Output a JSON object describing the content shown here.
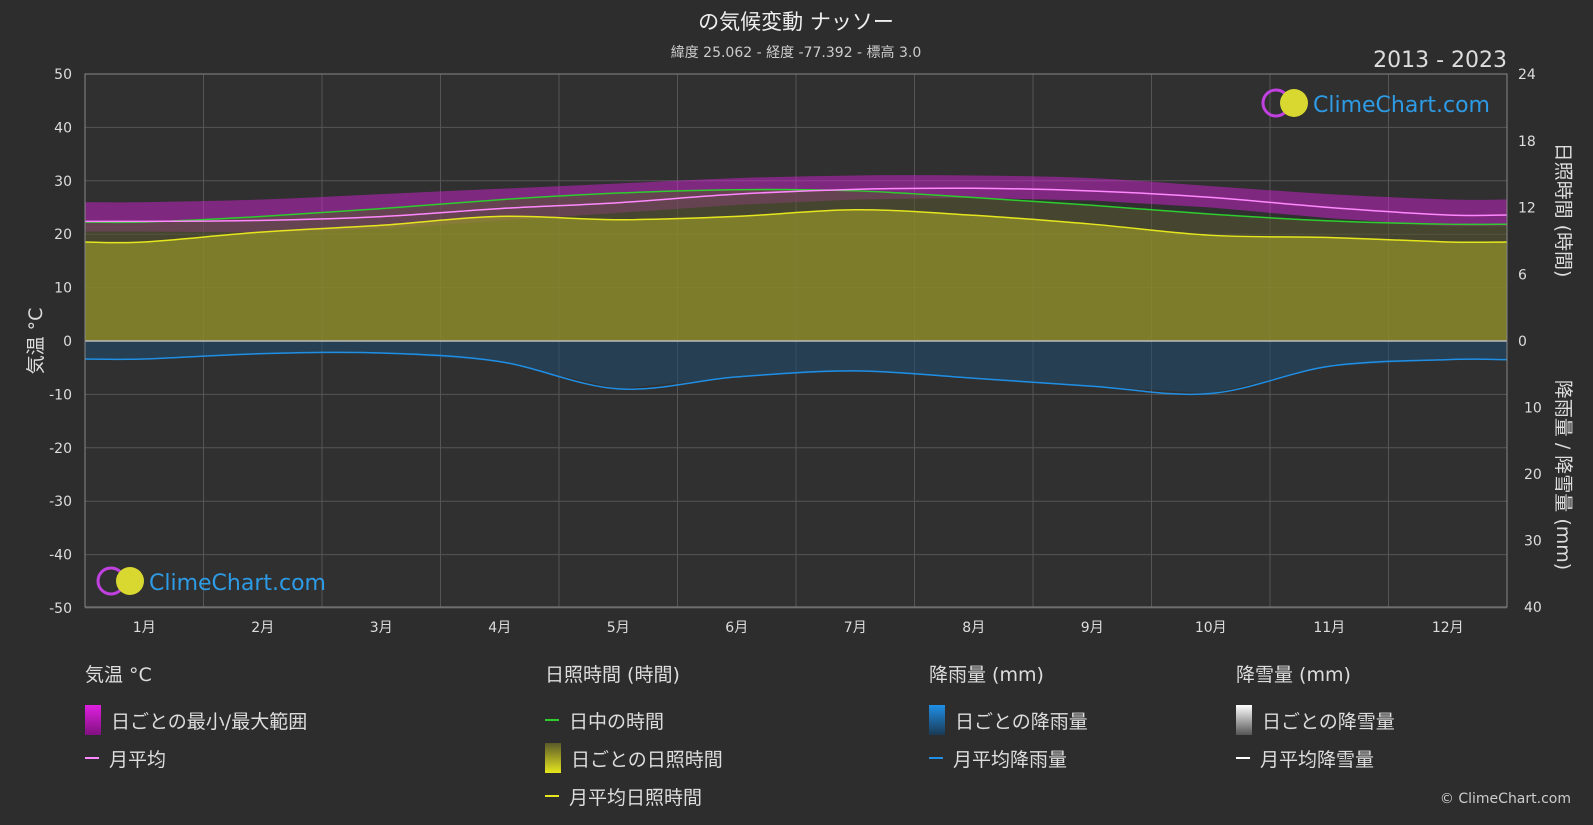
{
  "title": "の気候変動 ナッソー",
  "subtitle": "緯度 25.062 - 経度 -77.392 - 標高 3.0",
  "year_range": "2013 - 2023",
  "watermark": "ClimeChart.com",
  "copyright": "© ClimeChart.com",
  "colors": {
    "background": "#2d2d2d",
    "daylight": "#2ecc2e",
    "sunshine": "#e6e61e",
    "sunshine_fill": "#8a8a2a",
    "temp_range": "#e020e0",
    "temp_avg": "#ff88ff",
    "rain": "#1f8fe6",
    "snow": "#ffffff"
  },
  "legend": {
    "temperature": {
      "title": "気温 °C",
      "range": "日ごとの最小/最大範囲",
      "avg": "月平均"
    },
    "sunshine": {
      "title": "日照時間 (時間)",
      "daylight": "日中の時間",
      "daily": "日ごとの日照時間",
      "avg": "月平均日照時間"
    },
    "rain": {
      "title": "降雨量 (mm)",
      "daily": "日ごとの降雨量",
      "avg": "月平均降雨量"
    },
    "snow": {
      "title": "降雪量 (mm)",
      "daily": "日ごとの降雪量",
      "avg": "月平均降雪量"
    }
  },
  "chart_data": {
    "type": "line",
    "categories": [
      "1月",
      "2月",
      "3月",
      "4月",
      "5月",
      "6月",
      "7月",
      "8月",
      "9月",
      "10月",
      "11月",
      "12月"
    ],
    "y_left": {
      "label": "気温 °C",
      "range": [
        -50,
        50
      ],
      "ticks": [
        50,
        40,
        30,
        20,
        10,
        0,
        -10,
        -20,
        -30,
        -40,
        -50
      ]
    },
    "y_right_top": {
      "label": "日照時間 (時間)",
      "range": [
        0,
        24
      ],
      "ticks": [
        24,
        18,
        12,
        6,
        0
      ]
    },
    "y_right_bottom": {
      "label": "降雨量 / 降雪量 (mm)",
      "range": [
        0,
        40
      ],
      "ticks": [
        10,
        20,
        30,
        40
      ]
    },
    "series": [
      {
        "name": "日中の時間",
        "unit": "hours",
        "values": [
          10.7,
          11.2,
          11.9,
          12.7,
          13.3,
          13.6,
          13.5,
          12.9,
          12.2,
          11.4,
          10.8,
          10.5
        ]
      },
      {
        "name": "月平均日照時間",
        "unit": "hours",
        "values": [
          8.9,
          9.8,
          10.4,
          11.2,
          10.9,
          11.2,
          11.8,
          11.3,
          10.5,
          9.5,
          9.3,
          8.9
        ]
      },
      {
        "name": "月平均",
        "unit": "°C",
        "values": [
          22.4,
          22.6,
          23.3,
          24.8,
          25.9,
          27.5,
          28.4,
          28.6,
          28.1,
          26.9,
          25.0,
          23.6
        ]
      },
      {
        "name": "月平均降雨量",
        "unit": "mm",
        "values": [
          2.7,
          1.9,
          1.8,
          3.1,
          7.2,
          5.4,
          4.5,
          5.6,
          6.8,
          7.9,
          3.8,
          2.8
        ]
      },
      {
        "name": "月平均降雪量",
        "unit": "mm",
        "values": [
          0,
          0,
          0,
          0,
          0,
          0,
          0,
          0,
          0,
          0,
          0,
          0
        ]
      }
    ],
    "temp_range_min": [
      20.5,
      20.3,
      21.0,
      22.5,
      24.0,
      25.5,
      26.5,
      26.8,
      26.3,
      25.0,
      23.0,
      21.5
    ],
    "temp_range_max": [
      26.0,
      26.5,
      27.5,
      28.5,
      29.5,
      30.5,
      31.0,
      31.0,
      30.5,
      29.0,
      27.5,
      26.5
    ],
    "grid": true
  }
}
